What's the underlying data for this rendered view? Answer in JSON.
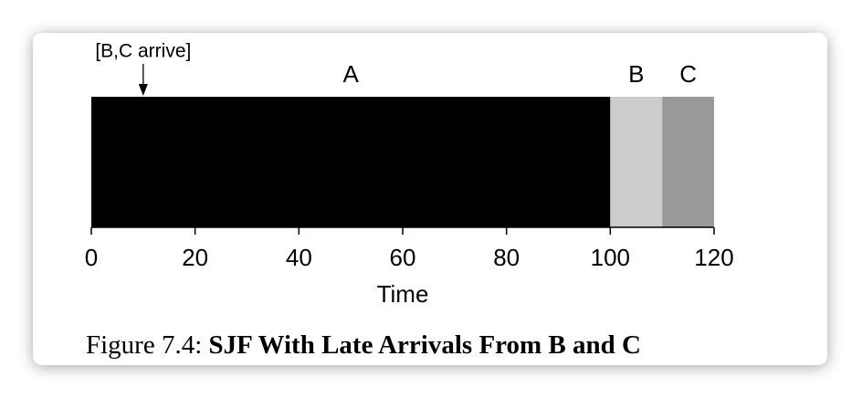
{
  "chart_data": {
    "type": "timeline",
    "annotation": {
      "text": "[B,C arrive]",
      "x": 10
    },
    "categories": [
      "A",
      "B",
      "C"
    ],
    "values": [
      100,
      10,
      10
    ],
    "colors": [
      "#000000",
      "#cccccc",
      "#999999"
    ],
    "xlim": [
      0,
      120
    ],
    "xticks": [
      0,
      20,
      40,
      60,
      80,
      100,
      120
    ],
    "xlabel": "Time",
    "caption_prefix": "Figure 7.4:",
    "caption": "SJF With Late Arrivals From B and C"
  }
}
